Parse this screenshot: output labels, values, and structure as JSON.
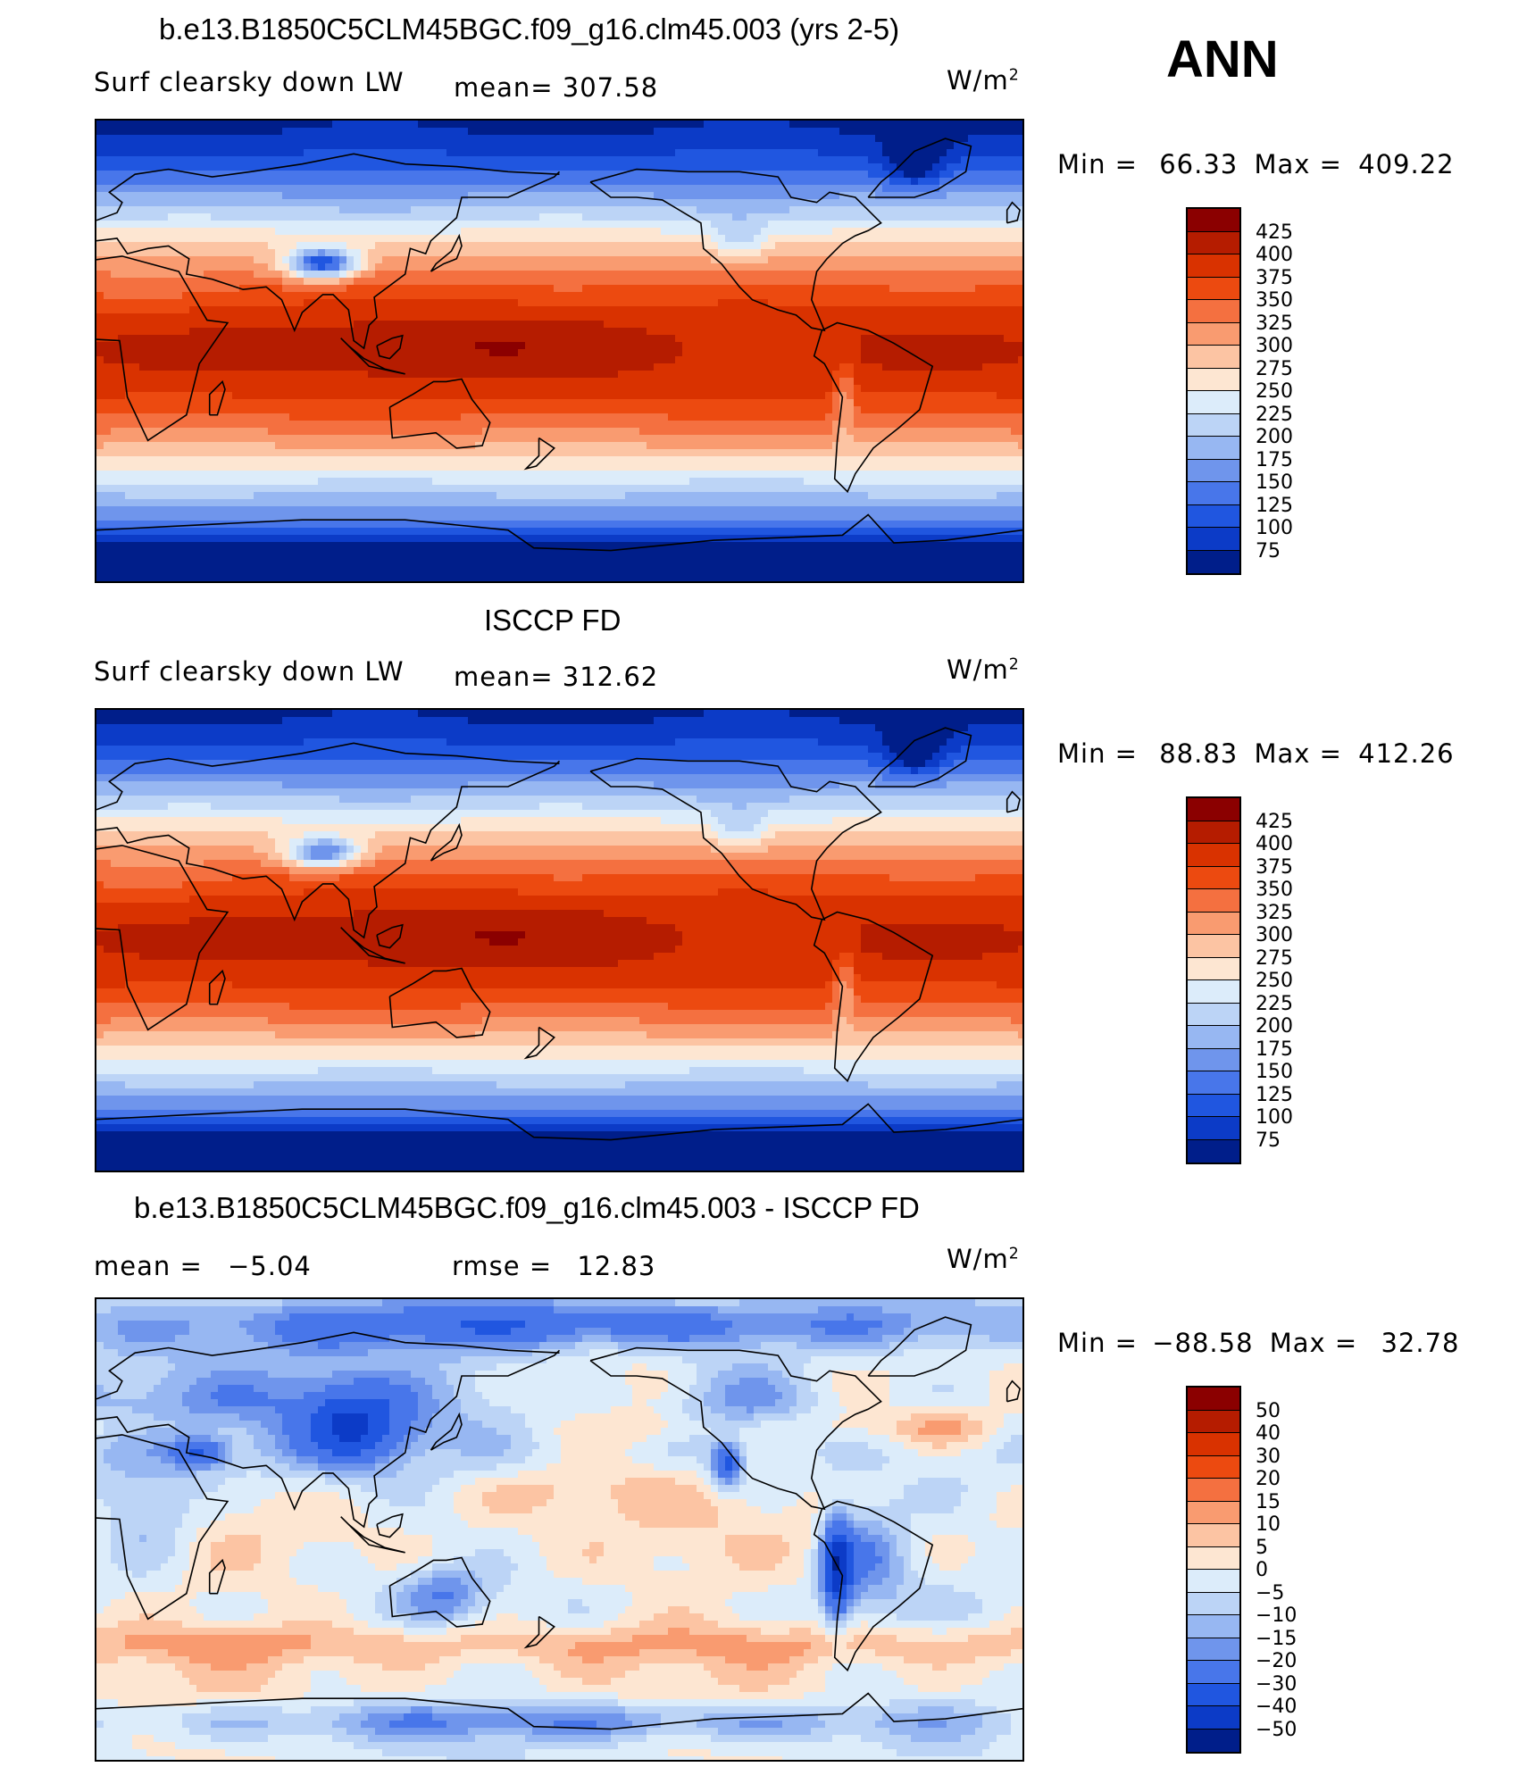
{
  "season": "ANN",
  "panels": [
    {
      "id": "model",
      "title": "b.e13.B1850C5CLM45BGC.f09_g16.clm45.003 (yrs 2-5)",
      "left_label": "Surf clearsky down LW",
      "stat_label": "mean=",
      "stat_value": "307.58",
      "units_base": "W/m",
      "units_exp": "2",
      "min_label": "Min  =",
      "min_value": "66.33",
      "max_label": "Max  =",
      "max_value": "409.22",
      "colorbar": {
        "levels": [
          "425",
          "400",
          "375",
          "350",
          "325",
          "300",
          "275",
          "250",
          "225",
          "200",
          "175",
          "150",
          "125",
          "100",
          "75"
        ],
        "colors": [
          "#8b0000",
          "#b51c00",
          "#d93200",
          "#ec4a10",
          "#f47040",
          "#f99b70",
          "#fcc4a3",
          "#fde6d2",
          "#dcecfa",
          "#bcd4f6",
          "#97b7f2",
          "#6f95ec",
          "#4876ea",
          "#2056e0",
          "#0c3bc7",
          "#001e8a"
        ]
      },
      "field": "abs"
    },
    {
      "id": "obs",
      "title": "ISCCP FD",
      "left_label": "Surf clearsky down LW",
      "stat_label": "mean=",
      "stat_value": "312.62",
      "units_base": "W/m",
      "units_exp": "2",
      "min_label": "Min  =",
      "min_value": "88.83",
      "max_label": "Max  =",
      "max_value": "412.26",
      "colorbar": {
        "levels": [
          "425",
          "400",
          "375",
          "350",
          "325",
          "300",
          "275",
          "250",
          "225",
          "200",
          "175",
          "150",
          "125",
          "100",
          "75"
        ],
        "colors": [
          "#8b0000",
          "#b51c00",
          "#d93200",
          "#ec4a10",
          "#f47040",
          "#f99b70",
          "#fcc4a3",
          "#fde6d2",
          "#dcecfa",
          "#bcd4f6",
          "#97b7f2",
          "#6f95ec",
          "#4876ea",
          "#2056e0",
          "#0c3bc7",
          "#001e8a"
        ]
      },
      "field": "abs"
    },
    {
      "id": "diff",
      "title": "b.e13.B1850C5CLM45BGC.f09_g16.clm45.003 - ISCCP FD",
      "left_label": "mean  =",
      "left_value": "−5.04",
      "stat_label": "rmse  =",
      "stat_value": "12.83",
      "units_base": "W/m",
      "units_exp": "2",
      "min_label": "Min  =",
      "min_value": "−88.58",
      "max_label": "Max  =",
      "max_value": "32.78",
      "colorbar": {
        "levels": [
          "50",
          "40",
          "30",
          "20",
          "15",
          "10",
          "5",
          "0",
          "−5",
          "−10",
          "−15",
          "−20",
          "−30",
          "−40",
          "−50"
        ],
        "colors": [
          "#8b0000",
          "#b51c00",
          "#d93200",
          "#ec4a10",
          "#f47040",
          "#f99b70",
          "#fcc4a3",
          "#fde6d2",
          "#dcecfa",
          "#bcd4f6",
          "#97b7f2",
          "#6f95ec",
          "#4876ea",
          "#2056e0",
          "#0c3bc7",
          "#001e8a"
        ]
      },
      "field": "diff"
    }
  ]
}
